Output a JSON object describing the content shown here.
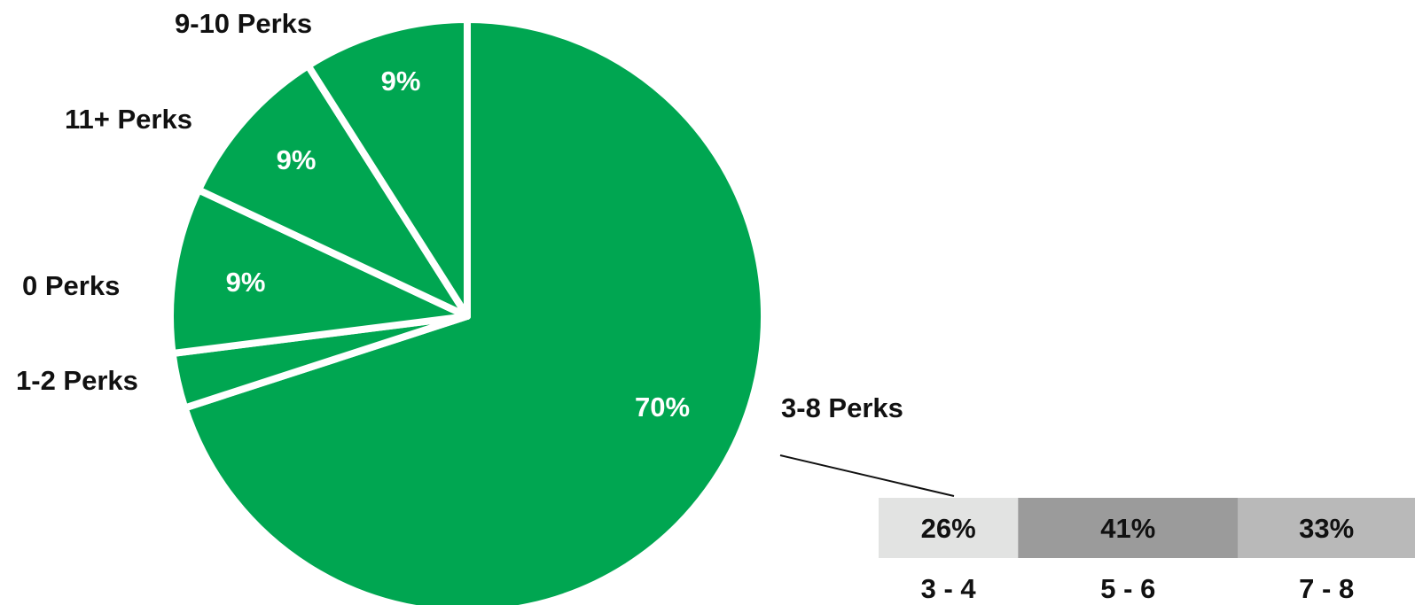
{
  "chart_data": [
    {
      "type": "pie",
      "slices": [
        {
          "category": "3-8 Perks",
          "value": 70,
          "label": "70%"
        },
        {
          "category": "1-2 Perks",
          "value": 3,
          "label": ""
        },
        {
          "category": "0 Perks",
          "value": 9,
          "label": "9%"
        },
        {
          "category": "11+ Perks",
          "value": 9,
          "label": "9%"
        },
        {
          "category": "9-10 Perks",
          "value": 9,
          "label": "9%"
        }
      ],
      "colors": {
        "slice": "#00a651",
        "separator": "#ffffff",
        "label_text": "#ffffff",
        "category_text": "#111111"
      },
      "start_angle_deg": 0,
      "direction": "clockwise"
    },
    {
      "type": "bar",
      "orientation": "stacked-horizontal",
      "detail_of": "3-8 Perks",
      "categories": [
        "3 - 4",
        "5 - 6",
        "7 - 8"
      ],
      "values": [
        26,
        41,
        33
      ],
      "value_labels": [
        "26%",
        "41%",
        "33%"
      ],
      "colors": [
        "#e2e3e2",
        "#9b9b9b",
        "#b9b9b9"
      ]
    }
  ]
}
